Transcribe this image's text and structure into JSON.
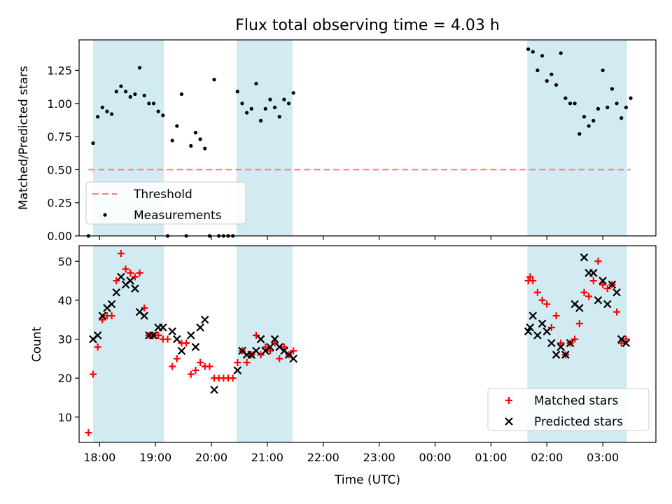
{
  "chart_data": [
    {
      "type": "scatter",
      "title": "Flux total observing time = 4.03 h",
      "xlabel": "",
      "ylabel": "Matched/Predicted stars",
      "xlim": [
        "17:38",
        "03:57"
      ],
      "ylim": [
        0,
        1.48
      ],
      "yticks": [
        "0.00",
        "0.25",
        "0.50",
        "0.75",
        "1.00",
        "1.25"
      ],
      "threshold": 0.5,
      "threshold_color": "#f08080",
      "point_color": "#000000",
      "shade_color": "#add8e6",
      "shaded_intervals": [
        [
          "17:53",
          "19:09"
        ],
        [
          "20:27",
          "21:27"
        ],
        [
          "01:39",
          "03:26"
        ]
      ],
      "legend": {
        "position": "lower left",
        "entries": [
          "Threshold",
          "Measurements"
        ]
      },
      "series": [
        {
          "name": "Measurements",
          "points": [
            [
              "17:48",
              0.0
            ],
            [
              "17:53",
              0.7
            ],
            [
              "17:58",
              0.9
            ],
            [
              "18:03",
              0.97
            ],
            [
              "18:08",
              0.94
            ],
            [
              "18:13",
              0.92
            ],
            [
              "18:18",
              1.09
            ],
            [
              "18:23",
              1.13
            ],
            [
              "18:28",
              1.09
            ],
            [
              "18:33",
              1.05
            ],
            [
              "18:38",
              1.07
            ],
            [
              "18:43",
              1.27
            ],
            [
              "18:48",
              1.06
            ],
            [
              "18:53",
              1.0
            ],
            [
              "18:58",
              1.0
            ],
            [
              "19:03",
              0.94
            ],
            [
              "19:08",
              0.91
            ],
            [
              "19:13",
              0.0
            ],
            [
              "19:18",
              0.72
            ],
            [
              "19:23",
              0.83
            ],
            [
              "19:28",
              1.07
            ],
            [
              "19:33",
              0.0
            ],
            [
              "19:38",
              0.68
            ],
            [
              "19:43",
              0.78
            ],
            [
              "19:48",
              0.73
            ],
            [
              "19:53",
              0.66
            ],
            [
              "19:58",
              0.0
            ],
            [
              "20:03",
              1.18
            ],
            [
              "20:08",
              0.0
            ],
            [
              "20:13",
              0.0
            ],
            [
              "20:18",
              0.0
            ],
            [
              "20:23",
              0.0
            ],
            [
              "20:28",
              1.09
            ],
            [
              "20:33",
              1.0
            ],
            [
              "20:38",
              0.93
            ],
            [
              "20:43",
              0.96
            ],
            [
              "20:48",
              1.15
            ],
            [
              "20:53",
              0.87
            ],
            [
              "20:58",
              0.96
            ],
            [
              "21:03",
              1.03
            ],
            [
              "21:08",
              0.97
            ],
            [
              "21:13",
              0.9
            ],
            [
              "21:18",
              1.03
            ],
            [
              "21:23",
              1.0
            ],
            [
              "21:28",
              1.08
            ],
            [
              "01:40",
              1.41
            ],
            [
              "01:45",
              1.39
            ],
            [
              "01:50",
              1.25
            ],
            [
              "01:55",
              1.36
            ],
            [
              "02:00",
              1.17
            ],
            [
              "02:05",
              1.22
            ],
            [
              "02:10",
              1.14
            ],
            [
              "02:15",
              1.38
            ],
            [
              "02:20",
              1.04
            ],
            [
              "02:25",
              1.0
            ],
            [
              "02:30",
              1.0
            ],
            [
              "02:35",
              0.77
            ],
            [
              "02:40",
              0.9
            ],
            [
              "02:45",
              0.83
            ],
            [
              "02:50",
              0.87
            ],
            [
              "02:55",
              0.96
            ],
            [
              "03:00",
              1.25
            ],
            [
              "03:05",
              0.97
            ],
            [
              "03:10",
              1.11
            ],
            [
              "03:15",
              1.0
            ],
            [
              "03:20",
              0.89
            ],
            [
              "03:25",
              0.97
            ],
            [
              "03:30",
              1.04
            ]
          ]
        }
      ]
    },
    {
      "type": "scatter",
      "title": "",
      "xlabel": "Time (UTC)",
      "ylabel": "Count",
      "xlim": [
        "17:38",
        "03:57"
      ],
      "ylim": [
        3.5,
        54
      ],
      "yticks": [
        "10",
        "20",
        "30",
        "40",
        "50"
      ],
      "xticks": [
        "18:00",
        "19:00",
        "20:00",
        "21:00",
        "22:00",
        "23:00",
        "00:00",
        "01:00",
        "02:00",
        "03:00"
      ],
      "shade_color": "#add8e6",
      "shaded_intervals": [
        [
          "17:53",
          "19:09"
        ],
        [
          "20:27",
          "21:27"
        ],
        [
          "01:39",
          "03:26"
        ]
      ],
      "legend": {
        "position": "lower right",
        "entries": [
          "Matched stars",
          "Predicted stars"
        ]
      },
      "series": [
        {
          "name": "Matched stars",
          "color": "#ff0000",
          "marker": "+",
          "points": [
            [
              "17:48",
              6
            ],
            [
              "17:53",
              21
            ],
            [
              "17:58",
              28
            ],
            [
              "18:03",
              35
            ],
            [
              "18:08",
              36
            ],
            [
              "18:13",
              36
            ],
            [
              "18:18",
              45
            ],
            [
              "18:23",
              52
            ],
            [
              "18:28",
              48
            ],
            [
              "18:33",
              47
            ],
            [
              "18:38",
              46
            ],
            [
              "18:43",
              47
            ],
            [
              "18:48",
              38
            ],
            [
              "18:53",
              31
            ],
            [
              "18:58",
              31
            ],
            [
              "19:03",
              31
            ],
            [
              "19:08",
              30
            ],
            [
              "19:13",
              30
            ],
            [
              "19:18",
              23
            ],
            [
              "19:23",
              25
            ],
            [
              "19:28",
              29
            ],
            [
              "19:33",
              29
            ],
            [
              "19:38",
              21
            ],
            [
              "19:43",
              22
            ],
            [
              "19:48",
              24
            ],
            [
              "19:53",
              23
            ],
            [
              "19:58",
              23
            ],
            [
              "20:03",
              20
            ],
            [
              "20:08",
              20
            ],
            [
              "20:13",
              20
            ],
            [
              "20:18",
              20
            ],
            [
              "20:23",
              20
            ],
            [
              "20:28",
              24
            ],
            [
              "20:33",
              27
            ],
            [
              "20:38",
              24
            ],
            [
              "20:43",
              26
            ],
            [
              "20:48",
              31
            ],
            [
              "20:53",
              26
            ],
            [
              "20:58",
              28
            ],
            [
              "21:03",
              27
            ],
            [
              "21:08",
              29
            ],
            [
              "21:13",
              25
            ],
            [
              "21:18",
              28
            ],
            [
              "21:23",
              26
            ],
            [
              "21:28",
              27
            ],
            [
              "01:40",
              45
            ],
            [
              "01:42",
              46
            ],
            [
              "01:45",
              45
            ],
            [
              "01:50",
              42
            ],
            [
              "01:55",
              40
            ],
            [
              "02:00",
              39
            ],
            [
              "02:05",
              33
            ],
            [
              "02:10",
              36
            ],
            [
              "02:15",
              29
            ],
            [
              "02:20",
              26
            ],
            [
              "02:25",
              29
            ],
            [
              "02:30",
              30
            ],
            [
              "02:35",
              34
            ],
            [
              "02:40",
              42
            ],
            [
              "02:45",
              41
            ],
            [
              "02:50",
              45
            ],
            [
              "02:55",
              50
            ],
            [
              "03:00",
              44
            ],
            [
              "03:05",
              43
            ],
            [
              "03:10",
              44
            ],
            [
              "03:15",
              37
            ],
            [
              "03:20",
              29
            ],
            [
              "03:25",
              30
            ]
          ]
        },
        {
          "name": "Predicted stars",
          "color": "#000000",
          "marker": "x",
          "points": [
            [
              "17:53",
              30
            ],
            [
              "17:58",
              31
            ],
            [
              "18:03",
              36
            ],
            [
              "18:08",
              38
            ],
            [
              "18:13",
              39
            ],
            [
              "18:18",
              42
            ],
            [
              "18:23",
              46
            ],
            [
              "18:28",
              44
            ],
            [
              "18:33",
              45
            ],
            [
              "18:38",
              43
            ],
            [
              "18:43",
              37
            ],
            [
              "18:48",
              36
            ],
            [
              "18:53",
              31
            ],
            [
              "18:58",
              31
            ],
            [
              "19:03",
              33
            ],
            [
              "19:08",
              33
            ],
            [
              "19:18",
              32
            ],
            [
              "19:23",
              30
            ],
            [
              "19:28",
              27
            ],
            [
              "19:38",
              31
            ],
            [
              "19:43",
              28
            ],
            [
              "19:48",
              33
            ],
            [
              "19:53",
              35
            ],
            [
              "20:03",
              17
            ],
            [
              "20:28",
              22
            ],
            [
              "20:33",
              27
            ],
            [
              "20:38",
              26
            ],
            [
              "20:43",
              26
            ],
            [
              "20:48",
              27
            ],
            [
              "20:53",
              30
            ],
            [
              "20:58",
              27
            ],
            [
              "21:03",
              28
            ],
            [
              "21:08",
              30
            ],
            [
              "21:13",
              28
            ],
            [
              "21:18",
              27
            ],
            [
              "21:23",
              26
            ],
            [
              "21:28",
              25
            ],
            [
              "01:40",
              32
            ],
            [
              "01:42",
              33
            ],
            [
              "01:45",
              36
            ],
            [
              "01:50",
              31
            ],
            [
              "01:55",
              34
            ],
            [
              "02:00",
              32
            ],
            [
              "02:05",
              29
            ],
            [
              "02:10",
              26
            ],
            [
              "02:15",
              28
            ],
            [
              "02:20",
              26
            ],
            [
              "02:25",
              29
            ],
            [
              "02:30",
              39
            ],
            [
              "02:35",
              38
            ],
            [
              "02:40",
              51
            ],
            [
              "02:45",
              47
            ],
            [
              "02:50",
              47
            ],
            [
              "02:55",
              40
            ],
            [
              "03:00",
              45
            ],
            [
              "03:05",
              39
            ],
            [
              "03:10",
              44
            ],
            [
              "03:15",
              42
            ],
            [
              "03:20",
              30
            ],
            [
              "03:25",
              29
            ]
          ]
        }
      ]
    }
  ]
}
